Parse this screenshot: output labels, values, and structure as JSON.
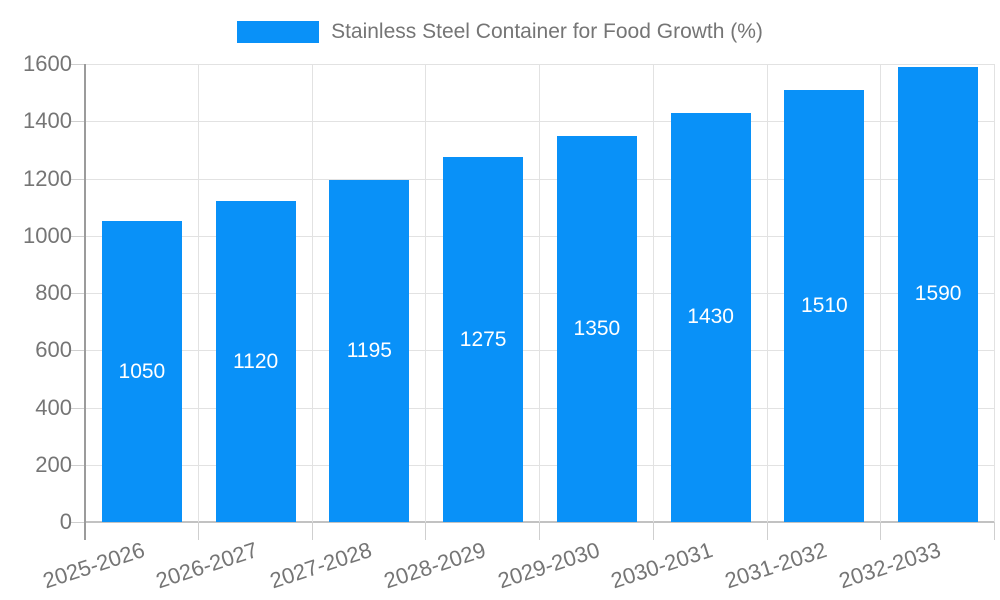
{
  "chart_data": {
    "type": "bar",
    "title": "",
    "legend_label": "Stainless Steel Container for Food Growth (%)",
    "legend_position": "top-center",
    "categories": [
      "2025-2026",
      "2026-2027",
      "2027-2028",
      "2028-2029",
      "2029-2030",
      "2030-2031",
      "2031-2032",
      "2032-2033"
    ],
    "values": [
      1050,
      1120,
      1195,
      1275,
      1350,
      1430,
      1510,
      1590
    ],
    "value_labels_shown": true,
    "xlabel": "",
    "ylabel": "",
    "ylim": [
      0,
      1600
    ],
    "yticks": [
      0,
      200,
      400,
      600,
      800,
      1000,
      1200,
      1400,
      1600
    ],
    "grid": true,
    "x_tick_rotation_deg": -18,
    "colors": {
      "bar": "#0991f8",
      "bar_value_text": "#ffffff",
      "axis_text": "#757575",
      "gridline": "#e2e2e2",
      "tick": "#cfcfcf",
      "y_axis_line": "#9b9b9b",
      "x_axis_line": "#c2c2c2",
      "background": "#ffffff"
    }
  }
}
